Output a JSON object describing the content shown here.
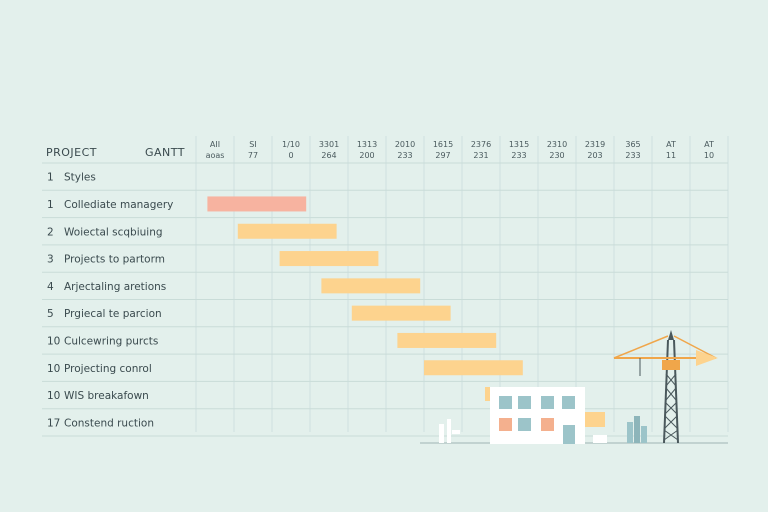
{
  "chart_data": {
    "type": "gantt",
    "header": {
      "left": "PROJECT",
      "right": "GANTT"
    },
    "columns": [
      {
        "top": "AII",
        "bottom": "aoas"
      },
      {
        "top": "SI",
        "bottom": "77"
      },
      {
        "top": "1/10",
        "bottom": "0"
      },
      {
        "top": "3301",
        "bottom": "264"
      },
      {
        "top": "1313",
        "bottom": "200"
      },
      {
        "top": "2010",
        "bottom": "233"
      },
      {
        "top": "1615",
        "bottom": "297"
      },
      {
        "top": "2376",
        "bottom": "231"
      },
      {
        "top": "1315",
        "bottom": "233"
      },
      {
        "top": "2310",
        "bottom": "230"
      },
      {
        "top": "2319",
        "bottom": "203"
      },
      {
        "top": "365",
        "bottom": "233"
      },
      {
        "top": "AT",
        "bottom": "11"
      },
      {
        "top": "AT",
        "bottom": "10"
      }
    ],
    "tasks": [
      {
        "num": "1",
        "label": "Styles",
        "start": null,
        "end": null,
        "color": ""
      },
      {
        "num": "1",
        "label": "Collediate managery",
        "start": 0.3,
        "end": 2.9,
        "color": "#f7b3a0"
      },
      {
        "num": "2",
        "label": "Woiectal scqbiuing",
        "start": 1.1,
        "end": 3.7,
        "color": "#fdd38e"
      },
      {
        "num": "3",
        "label": "Projects to partorm",
        "start": 2.2,
        "end": 4.8,
        "color": "#fdd38e"
      },
      {
        "num": "4",
        "label": "Arjectaling aretions",
        "start": 3.3,
        "end": 5.9,
        "color": "#fdd38e"
      },
      {
        "num": "5",
        "label": "Prgiecal te parcion",
        "start": 4.1,
        "end": 6.7,
        "color": "#fdd38e"
      },
      {
        "num": "10",
        "label": "Culcewring purcts",
        "start": 5.3,
        "end": 7.9,
        "color": "#fdd38e"
      },
      {
        "num": "10",
        "label": "Projecting conrol",
        "start": 6.0,
        "end": 8.6,
        "color": "#fdd38e"
      },
      {
        "num": "10",
        "label": "WIS breakafown",
        "start": null,
        "end": null,
        "color": ""
      },
      {
        "num": "17",
        "label": "Constend ruction",
        "start": null,
        "end": null,
        "color": ""
      }
    ]
  }
}
